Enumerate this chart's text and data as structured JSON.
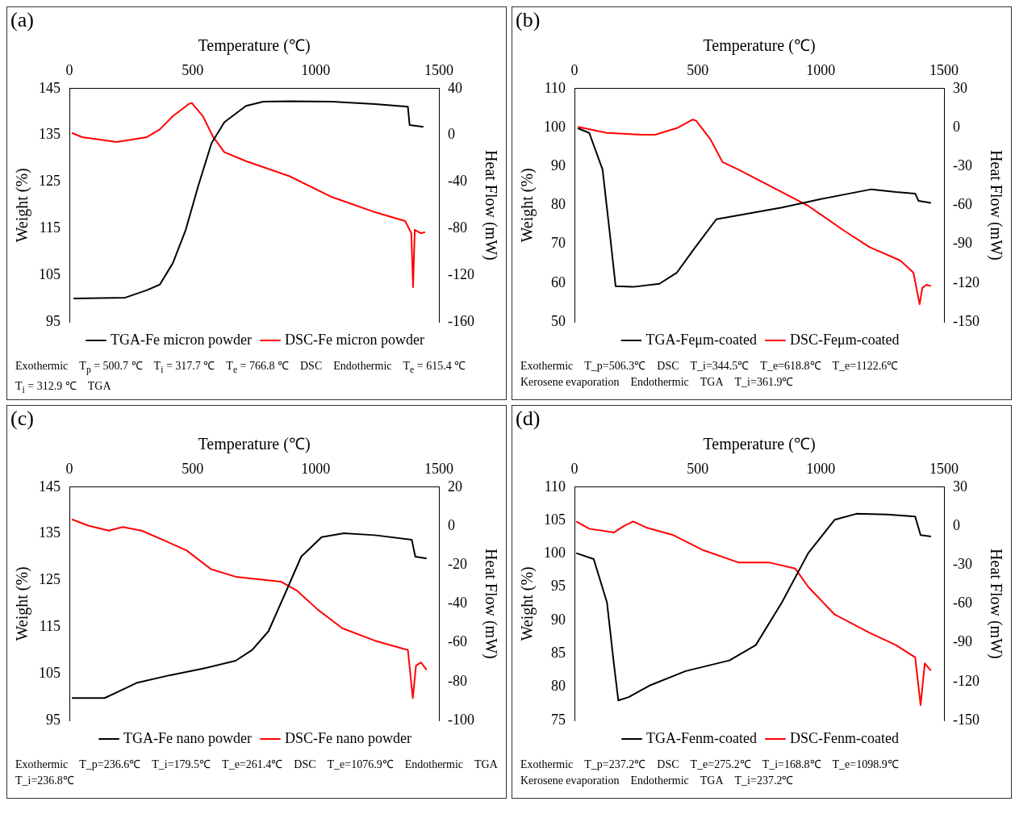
{
  "chart_data": [
    {
      "type": "line",
      "title": "(a)",
      "xlabel": "Temperature (℃)",
      "ylabel": "Weight (%)",
      "y2label": "Heat Flow (mW)",
      "xlim": [
        0,
        1500
      ],
      "xticks": [
        0,
        500,
        1000,
        1500
      ],
      "ylim": [
        95,
        145
      ],
      "yticks": [
        95,
        105,
        115,
        125,
        135,
        145
      ],
      "y2lim": [
        -160,
        40
      ],
      "y2ticks": [
        -160,
        -120,
        -80,
        -40,
        0,
        40
      ],
      "legend": "bottom",
      "marker": "none",
      "line_style": "solid",
      "series": [
        {
          "name": "TGA-Fe micron powder",
          "color": "#000000",
          "x": [
            17,
            227,
            315,
            367,
            420,
            472,
            524,
            577,
            629,
            717,
            787,
            892,
            1066,
            1241,
            1374,
            1381,
            1437
          ],
          "values": [
            100,
            100.2,
            101.8,
            103,
            107.6,
            114.7,
            124.3,
            133.3,
            137.8,
            141.3,
            142.2,
            142.3,
            142.2,
            141.7,
            141.1,
            137.2,
            136.8
          ]
        },
        {
          "name": "DSC-Fe micron powder",
          "color": "#ff0000",
          "axis": "y2",
          "x": [
            10,
            52,
            192,
            315,
            367,
            420,
            483,
            497,
            542,
            584,
            629,
            717,
            892,
            1066,
            1241,
            1363,
            1388,
            1395,
            1402,
            1426,
            1444
          ],
          "values": [
            2,
            -1.6,
            -5.8,
            -1.6,
            5,
            16.3,
            26.6,
            27.7,
            16.3,
            -1.6,
            -14.5,
            -22.2,
            -35,
            -53,
            -66,
            -73.6,
            -83.9,
            -130.2,
            -81,
            -84,
            -83
          ]
        }
      ],
      "annotations": [
        "Exothermic",
        "T$_{p}$ = 500.7 ℃",
        "T$_{i}$ = 317.7 ℃",
        "T$_{e}$ = 766.8 ℃",
        "DSC",
        "Endothermic",
        "T$_{e}$ = 615.4 ℃",
        "T$_{i}$ = 312.9 ℃",
        "TGA"
      ]
    },
    {
      "type": "line",
      "title": "(b)",
      "xlabel": "Temperature (℃)",
      "ylabel": "Weight (%)",
      "y2label": "Heat Flow (mW)",
      "xlim": [
        0,
        1500
      ],
      "xticks": [
        0,
        500,
        1000,
        1500
      ],
      "ylim": [
        50,
        110
      ],
      "yticks": [
        50,
        60,
        70,
        80,
        90,
        100,
        110
      ],
      "y2lim": [
        -150,
        30
      ],
      "y2ticks": [
        -150,
        -120,
        -90,
        -60,
        -30,
        0,
        30
      ],
      "legend": "bottom",
      "marker": "none",
      "line_style": "solid",
      "series": [
        {
          "name": "TGA-Feμm-coated",
          "color": "#000000",
          "x": [
            14,
            60,
            114,
            142,
            167,
            238,
            345,
            416,
            487,
            576,
            700,
            842,
            985,
            1091,
            1205,
            1305,
            1383,
            1397,
            1447
          ],
          "values": [
            99.8,
            98.6,
            89.2,
            73.6,
            59.2,
            59,
            59.8,
            62.7,
            68.9,
            76.4,
            77.8,
            79.4,
            81.4,
            82.7,
            84.1,
            83.4,
            83,
            81.1,
            80.6
          ]
        },
        {
          "name": "DSC-Feμm-coated",
          "color": "#ff0000",
          "axis": "y2",
          "x": [
            14,
            132,
            274,
            327,
            416,
            480,
            494,
            551,
            601,
            665,
            807,
            949,
            1091,
            1198,
            1323,
            1376,
            1401,
            1412,
            1429,
            1447
          ],
          "values": [
            0.5,
            -4.2,
            -5.6,
            -5.6,
            -0.5,
            6.1,
            5.2,
            -8.9,
            -26.7,
            -32.4,
            -46.4,
            -60.5,
            -79.2,
            -92.4,
            -102.7,
            -112,
            -136.4,
            -123.8,
            -121.4,
            -122.4
          ]
        }
      ],
      "annotations": [
        "Exothermic",
        "T_p=506.3℃",
        "DSC",
        "T_i=344.5℃",
        "T_e=618.8℃",
        "T_e=1122.6℃",
        "Kerosene evaporation",
        "Endothermic",
        "TGA",
        "T_i=361.9℃"
      ]
    },
    {
      "type": "line",
      "title": "(c)",
      "xlabel": "Temperature (℃)",
      "ylabel": "Weight (%)",
      "y2label": "Heat Flow (mW)",
      "xlim": [
        0,
        1500
      ],
      "xticks": [
        0,
        500,
        1000,
        1500
      ],
      "ylim": [
        95,
        145
      ],
      "yticks": [
        95,
        105,
        115,
        125,
        135,
        145
      ],
      "y2lim": [
        -100,
        20
      ],
      "y2ticks": [
        -100,
        -80,
        -60,
        -40,
        -20,
        0,
        20
      ],
      "legend": "bottom",
      "marker": "none",
      "line_style": "solid",
      "series": [
        {
          "name": "TGA-Fe nano powder",
          "color": "#000000",
          "x": [
            10,
            143,
            200,
            276,
            409,
            542,
            675,
            742,
            808,
            875,
            941,
            1024,
            1114,
            1240,
            1390,
            1404,
            1450
          ],
          "values": [
            99.8,
            99.8,
            101.2,
            103.1,
            104.7,
            106.1,
            107.8,
            110.1,
            114.1,
            122.1,
            130.1,
            134.3,
            135.1,
            134.7,
            133.7,
            130.1,
            129.7
          ]
        },
        {
          "name": "DSC-Fe nano powder",
          "color": "#ff0000",
          "axis": "y2",
          "x": [
            10,
            76,
            160,
            216,
            293,
            392,
            476,
            575,
            675,
            858,
            925,
            1008,
            1108,
            1240,
            1374,
            1394,
            1407,
            1427,
            1450
          ],
          "values": [
            3.4,
            0.2,
            -2.4,
            -0.5,
            -2.4,
            -7.8,
            -12.6,
            -22.2,
            -26.1,
            -28.6,
            -33.4,
            -43,
            -52.6,
            -59,
            -63.8,
            -88.5,
            -71.8,
            -70.2,
            -74
          ]
        }
      ],
      "annotations": [
        "Exothermic",
        "T_p=236.6℃",
        "T_i=179.5℃",
        "T_e=261.4℃",
        "DSC",
        "T_e=1076.9℃",
        "Endothermic",
        "TGA",
        "T_i=236.8℃"
      ]
    },
    {
      "type": "line",
      "title": "(d)",
      "xlabel": "Temperature (℃)",
      "ylabel": "Weight (%)",
      "y2label": "Heat Flow (mW)",
      "xlim": [
        0,
        1500
      ],
      "xticks": [
        0,
        500,
        1000,
        1500
      ],
      "ylim": [
        75,
        110
      ],
      "yticks": [
        75,
        80,
        85,
        90,
        95,
        100,
        105,
        110
      ],
      "y2lim": [
        -150,
        30
      ],
      "y2ticks": [
        -150,
        -120,
        -90,
        -60,
        -30,
        0,
        30
      ],
      "legend": "bottom",
      "marker": "none",
      "line_style": "solid",
      "series": [
        {
          "name": "TGA-Fenm-coated",
          "color": "#000000",
          "x": [
            7,
            78,
            132,
            160,
            178,
            220,
            309,
            451,
            629,
            736,
            842,
            949,
            1056,
            1145,
            1270,
            1383,
            1405,
            1447
          ],
          "values": [
            100.1,
            99.2,
            92.7,
            83.5,
            78,
            78.5,
            80.3,
            82.4,
            84,
            86.3,
            92.7,
            100.1,
            105.1,
            106,
            105.9,
            105.6,
            102.8,
            102.6
          ]
        },
        {
          "name": "DSC-Fenm-coated",
          "color": "#ff0000",
          "axis": "y2",
          "x": [
            7,
            60,
            160,
            203,
            238,
            292,
            398,
            523,
            665,
            789,
            896,
            949,
            1056,
            1198,
            1305,
            1383,
            1405,
            1422,
            1447
          ],
          "values": [
            3.5,
            -2.1,
            -5,
            0.2,
            3.5,
            -1.2,
            -6.8,
            -18.7,
            -28.1,
            -28.1,
            -32.8,
            -47,
            -68.3,
            -82.4,
            -91.9,
            -101.4,
            -138.2,
            -106,
            -111.7
          ]
        }
      ],
      "annotations": [
        "Exothermic",
        "T_p=237.2℃",
        "DSC",
        "T_e=275.2℃",
        "T_i=168.8℃",
        "T_e=1098.9℃",
        "Kerosene evaporation",
        "Endothermic",
        "TGA",
        "T_i=237.2℃"
      ]
    }
  ]
}
